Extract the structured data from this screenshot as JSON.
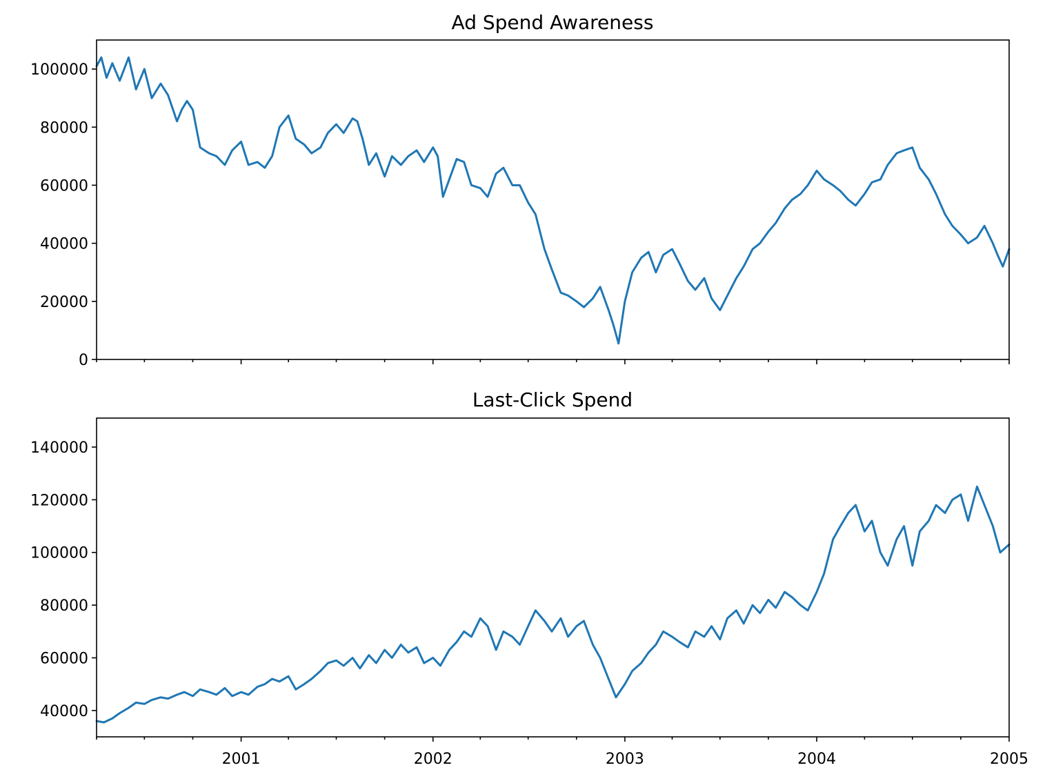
{
  "chart_data": [
    {
      "type": "line",
      "title": "Ad Spend Awareness",
      "xlabel": "",
      "ylabel": "",
      "x_range": [
        "2000-04-01",
        "2005-01-01"
      ],
      "ylim": [
        0,
        110000
      ],
      "y_ticks": [
        0,
        20000,
        40000,
        60000,
        80000,
        100000
      ],
      "y_tick_labels": [
        "0",
        "20000",
        "40000",
        "60000",
        "80000",
        "100000"
      ],
      "x_tick_labels_visible": false,
      "grid": false,
      "legend": "none",
      "color": "#1f77b4",
      "series": [
        {
          "x": [
            "2000-04-01",
            "2000-04-10",
            "2000-04-20",
            "2000-05-01",
            "2000-05-15",
            "2000-06-01",
            "2000-06-15",
            "2000-07-01",
            "2000-07-15",
            "2000-08-01",
            "2000-08-15",
            "2000-09-01",
            "2000-09-10",
            "2000-09-20",
            "2000-10-01",
            "2000-10-15",
            "2000-11-01",
            "2000-11-15",
            "2000-12-01",
            "2000-12-15",
            "2001-01-01",
            "2001-01-15",
            "2001-02-01",
            "2001-02-15",
            "2001-03-01",
            "2001-03-15",
            "2001-04-01",
            "2001-04-15",
            "2001-05-01",
            "2001-05-15",
            "2001-06-01",
            "2001-06-15",
            "2001-07-01",
            "2001-07-15",
            "2001-08-01",
            "2001-08-10",
            "2001-08-20",
            "2001-09-01",
            "2001-09-15",
            "2001-10-01",
            "2001-10-15",
            "2001-11-01",
            "2001-11-15",
            "2001-12-01",
            "2001-12-15",
            "2002-01-01",
            "2002-01-10",
            "2002-01-20",
            "2002-02-01",
            "2002-02-15",
            "2002-03-01",
            "2002-03-15",
            "2002-04-01",
            "2002-04-15",
            "2002-05-01",
            "2002-05-15",
            "2002-06-01",
            "2002-06-15",
            "2002-07-01",
            "2002-07-15",
            "2002-08-01",
            "2002-08-15",
            "2002-09-01",
            "2002-09-15",
            "2002-10-01",
            "2002-10-15",
            "2002-11-01",
            "2002-11-15",
            "2002-12-01",
            "2002-12-10",
            "2002-12-20",
            "2003-01-01",
            "2003-01-15",
            "2003-02-01",
            "2003-02-15",
            "2003-03-01",
            "2003-03-15",
            "2003-04-01",
            "2003-04-15",
            "2003-05-01",
            "2003-05-15",
            "2003-06-01",
            "2003-06-15",
            "2003-07-01",
            "2003-07-15",
            "2003-08-01",
            "2003-08-15",
            "2003-09-01",
            "2003-09-15",
            "2003-10-01",
            "2003-10-15",
            "2003-11-01",
            "2003-11-15",
            "2003-12-01",
            "2003-12-15",
            "2004-01-01",
            "2004-01-15",
            "2004-02-01",
            "2004-02-15",
            "2004-03-01",
            "2004-03-15",
            "2004-04-01",
            "2004-04-15",
            "2004-05-01",
            "2004-05-15",
            "2004-06-01",
            "2004-06-15",
            "2004-07-01",
            "2004-07-15",
            "2004-08-01",
            "2004-08-15",
            "2004-09-01",
            "2004-09-15",
            "2004-10-01",
            "2004-10-15",
            "2004-11-01",
            "2004-11-15",
            "2004-12-01",
            "2004-12-10",
            "2004-12-20",
            "2005-01-01"
          ],
          "y": [
            101000,
            104000,
            97000,
            102000,
            96000,
            104000,
            93000,
            100000,
            90000,
            95000,
            91000,
            82000,
            86000,
            89000,
            86000,
            73000,
            71000,
            70000,
            67000,
            72000,
            75000,
            67000,
            68000,
            66000,
            70000,
            80000,
            84000,
            76000,
            74000,
            71000,
            73000,
            78000,
            81000,
            78000,
            83000,
            82000,
            76000,
            67000,
            71000,
            63000,
            70000,
            67000,
            70000,
            72000,
            68000,
            73000,
            70000,
            56000,
            62000,
            69000,
            68000,
            60000,
            59000,
            56000,
            64000,
            66000,
            60000,
            60000,
            54000,
            50000,
            38000,
            31000,
            23000,
            22000,
            20000,
            18000,
            21000,
            25000,
            17000,
            12000,
            5500,
            20000,
            30000,
            35000,
            37000,
            30000,
            36000,
            38000,
            33000,
            27000,
            24000,
            28000,
            21000,
            17000,
            22000,
            28000,
            32000,
            38000,
            40000,
            44000,
            47000,
            52000,
            55000,
            57000,
            60000,
            65000,
            62000,
            60000,
            58000,
            55000,
            53000,
            57000,
            61000,
            62000,
            67000,
            71000,
            72000,
            73000,
            66000,
            62000,
            57000,
            50000,
            46000,
            43000,
            40000,
            42000,
            46000,
            40000,
            36000,
            32000,
            38000
          ]
        }
      ]
    },
    {
      "type": "line",
      "title": "Last-Click Spend",
      "xlabel": "",
      "ylabel": "",
      "x_range": [
        "2000-04-01",
        "2005-01-01"
      ],
      "ylim": [
        30000,
        151000
      ],
      "y_ticks": [
        40000,
        60000,
        80000,
        100000,
        120000,
        140000
      ],
      "y_tick_labels": [
        "40000",
        "60000",
        "80000",
        "100000",
        "120000",
        "140000"
      ],
      "x_ticks": [
        "2001-01-01",
        "2002-01-01",
        "2003-01-01",
        "2004-01-01",
        "2005-01-01"
      ],
      "x_tick_labels": [
        "2001",
        "2002",
        "2003",
        "2004",
        "2005"
      ],
      "grid": false,
      "legend": "none",
      "color": "#1f77b4",
      "series": [
        {
          "x": [
            "2000-04-01",
            "2000-04-15",
            "2000-05-01",
            "2000-05-15",
            "2000-06-01",
            "2000-06-15",
            "2000-07-01",
            "2000-07-15",
            "2000-08-01",
            "2000-08-15",
            "2000-09-01",
            "2000-09-15",
            "2000-10-01",
            "2000-10-15",
            "2000-11-01",
            "2000-11-15",
            "2000-12-01",
            "2000-12-15",
            "2001-01-01",
            "2001-01-15",
            "2001-02-01",
            "2001-02-15",
            "2001-03-01",
            "2001-03-15",
            "2001-04-01",
            "2001-04-15",
            "2001-05-01",
            "2001-05-15",
            "2001-06-01",
            "2001-06-15",
            "2001-07-01",
            "2001-07-15",
            "2001-08-01",
            "2001-08-15",
            "2001-09-01",
            "2001-09-15",
            "2001-10-01",
            "2001-10-15",
            "2001-11-01",
            "2001-11-15",
            "2001-12-01",
            "2001-12-15",
            "2002-01-01",
            "2002-01-15",
            "2002-02-01",
            "2002-02-15",
            "2002-03-01",
            "2002-03-15",
            "2002-04-01",
            "2002-04-15",
            "2002-05-01",
            "2002-05-15",
            "2002-06-01",
            "2002-06-15",
            "2002-07-01",
            "2002-07-15",
            "2002-08-01",
            "2002-08-15",
            "2002-09-01",
            "2002-09-15",
            "2002-10-01",
            "2002-10-15",
            "2002-11-01",
            "2002-11-15",
            "2002-12-01",
            "2002-12-15",
            "2003-01-01",
            "2003-01-15",
            "2003-02-01",
            "2003-02-15",
            "2003-03-01",
            "2003-03-15",
            "2003-04-01",
            "2003-04-15",
            "2003-05-01",
            "2003-05-15",
            "2003-06-01",
            "2003-06-15",
            "2003-07-01",
            "2003-07-15",
            "2003-08-01",
            "2003-08-15",
            "2003-09-01",
            "2003-09-15",
            "2003-10-01",
            "2003-10-15",
            "2003-11-01",
            "2003-11-15",
            "2003-12-01",
            "2003-12-15",
            "2004-01-01",
            "2004-01-15",
            "2004-02-01",
            "2004-02-15",
            "2004-03-01",
            "2004-03-15",
            "2004-04-01",
            "2004-04-15",
            "2004-05-01",
            "2004-05-15",
            "2004-06-01",
            "2004-06-15",
            "2004-07-01",
            "2004-07-15",
            "2004-08-01",
            "2004-08-15",
            "2004-09-01",
            "2004-09-15",
            "2004-10-01",
            "2004-10-15",
            "2004-11-01",
            "2004-11-15",
            "2004-12-01",
            "2004-12-15",
            "2005-01-01"
          ],
          "y": [
            36000,
            35500,
            37000,
            39000,
            41000,
            43000,
            42500,
            44000,
            45000,
            44500,
            46000,
            47000,
            45500,
            48000,
            47000,
            46000,
            48500,
            45500,
            47000,
            46000,
            49000,
            50000,
            52000,
            51000,
            53000,
            48000,
            50000,
            52000,
            55000,
            58000,
            59000,
            57000,
            60000,
            56000,
            61000,
            58000,
            63000,
            60000,
            65000,
            62000,
            64000,
            58000,
            60000,
            57000,
            63000,
            66000,
            70000,
            68000,
            75000,
            72000,
            63000,
            70000,
            68000,
            65000,
            72000,
            78000,
            74000,
            70000,
            75000,
            68000,
            72000,
            74000,
            65000,
            60000,
            52000,
            45000,
            50000,
            55000,
            58000,
            62000,
            65000,
            70000,
            68000,
            66000,
            64000,
            70000,
            68000,
            72000,
            67000,
            75000,
            78000,
            73000,
            80000,
            77000,
            82000,
            79000,
            85000,
            83000,
            80000,
            78000,
            85000,
            92000,
            105000,
            110000,
            115000,
            118000,
            108000,
            112000,
            100000,
            95000,
            105000,
            110000,
            95000,
            108000,
            112000,
            118000,
            115000,
            120000,
            122000,
            112000,
            125000,
            118000,
            110000,
            100000,
            103000
          ]
        }
      ]
    }
  ]
}
